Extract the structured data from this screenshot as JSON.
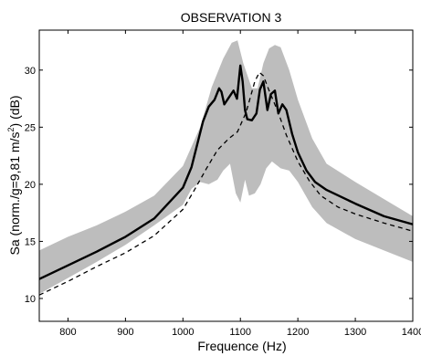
{
  "chart_data": {
    "type": "line",
    "title": "OBSERVATION 3",
    "xlabel": "Frequence (Hz)",
    "ylabel_prefix": "Sa (norm./g=9,81 m/s",
    "ylabel_sup": "2",
    "ylabel_suffix": ") (dB)",
    "xlim": [
      750,
      1400
    ],
    "ylim": [
      8,
      33.5
    ],
    "xticks": [
      800,
      900,
      1000,
      1100,
      1200,
      1300,
      1400
    ],
    "yticks": [
      10,
      15,
      20,
      25,
      30
    ],
    "grid": false,
    "legend": "none",
    "colors": {
      "band": "#bdbdbd",
      "solid": "#000000",
      "dashed": "#000000"
    },
    "band": {
      "upper": [
        [
          750,
          14.2
        ],
        [
          800,
          15.4
        ],
        [
          850,
          16.4
        ],
        [
          900,
          17.6
        ],
        [
          950,
          19.0
        ],
        [
          1000,
          21.6
        ],
        [
          1030,
          25.0
        ],
        [
          1050,
          28.5
        ],
        [
          1070,
          31.0
        ],
        [
          1085,
          32.4
        ],
        [
          1095,
          32.6
        ],
        [
          1105,
          30.6
        ],
        [
          1120,
          28.4
        ],
        [
          1130,
          28.4
        ],
        [
          1140,
          30.6
        ],
        [
          1150,
          31.9
        ],
        [
          1160,
          32.2
        ],
        [
          1170,
          32.0
        ],
        [
          1185,
          30.0
        ],
        [
          1200,
          27.4
        ],
        [
          1225,
          24.0
        ],
        [
          1250,
          21.8
        ],
        [
          1300,
          20.2
        ],
        [
          1350,
          18.7
        ],
        [
          1400,
          17.2
        ]
      ],
      "lower": [
        [
          1400,
          13.2
        ],
        [
          1350,
          14.2
        ],
        [
          1300,
          15.2
        ],
        [
          1250,
          16.6
        ],
        [
          1225,
          18.0
        ],
        [
          1200,
          20.2
        ],
        [
          1185,
          21.2
        ],
        [
          1170,
          21.4
        ],
        [
          1155,
          22.0
        ],
        [
          1145,
          21.4
        ],
        [
          1135,
          20.0
        ],
        [
          1125,
          19.2
        ],
        [
          1115,
          19.0
        ],
        [
          1108,
          20.4
        ],
        [
          1100,
          18.4
        ],
        [
          1092,
          19.2
        ],
        [
          1082,
          21.8
        ],
        [
          1070,
          21.2
        ],
        [
          1060,
          20.4
        ],
        [
          1045,
          20.0
        ],
        [
          1030,
          20.2
        ],
        [
          1015,
          19.6
        ],
        [
          1000,
          18.2
        ],
        [
          950,
          16.4
        ],
        [
          900,
          14.7
        ],
        [
          850,
          13.2
        ],
        [
          800,
          11.8
        ],
        [
          750,
          10.4
        ]
      ]
    },
    "series": [
      {
        "style": "solid",
        "points": [
          [
            750,
            11.7
          ],
          [
            800,
            12.9
          ],
          [
            850,
            14.1
          ],
          [
            900,
            15.4
          ],
          [
            950,
            17.0
          ],
          [
            1000,
            19.7
          ],
          [
            1015,
            21.5
          ],
          [
            1025,
            23.5
          ],
          [
            1035,
            25.5
          ],
          [
            1045,
            26.8
          ],
          [
            1055,
            27.4
          ],
          [
            1063,
            28.4
          ],
          [
            1067,
            28.1
          ],
          [
            1072,
            27.0
          ],
          [
            1080,
            27.6
          ],
          [
            1088,
            28.2
          ],
          [
            1094,
            27.5
          ],
          [
            1100,
            30.4
          ],
          [
            1104,
            29.0
          ],
          [
            1108,
            26.5
          ],
          [
            1112,
            25.7
          ],
          [
            1120,
            25.6
          ],
          [
            1128,
            26.2
          ],
          [
            1134,
            28.3
          ],
          [
            1140,
            29.0
          ],
          [
            1147,
            26.5
          ],
          [
            1153,
            27.9
          ],
          [
            1160,
            28.2
          ],
          [
            1166,
            26.2
          ],
          [
            1173,
            27.0
          ],
          [
            1180,
            26.5
          ],
          [
            1190,
            24.4
          ],
          [
            1200,
            22.8
          ],
          [
            1215,
            21.2
          ],
          [
            1230,
            20.2
          ],
          [
            1250,
            19.5
          ],
          [
            1300,
            18.3
          ],
          [
            1350,
            17.2
          ],
          [
            1400,
            16.5
          ]
        ]
      },
      {
        "style": "dashed",
        "points": [
          [
            750,
            10.3
          ],
          [
            800,
            11.5
          ],
          [
            850,
            12.8
          ],
          [
            900,
            14.0
          ],
          [
            950,
            15.5
          ],
          [
            1000,
            17.8
          ],
          [
            1020,
            19.5
          ],
          [
            1040,
            21.3
          ],
          [
            1060,
            23.0
          ],
          [
            1080,
            24.0
          ],
          [
            1095,
            24.6
          ],
          [
            1110,
            26.3
          ],
          [
            1125,
            29.0
          ],
          [
            1133,
            29.8
          ],
          [
            1140,
            29.5
          ],
          [
            1150,
            28.2
          ],
          [
            1165,
            26.4
          ],
          [
            1180,
            24.3
          ],
          [
            1200,
            22.0
          ],
          [
            1220,
            20.3
          ],
          [
            1240,
            19.0
          ],
          [
            1270,
            18.0
          ],
          [
            1300,
            17.4
          ],
          [
            1350,
            16.6
          ],
          [
            1400,
            15.9
          ]
        ]
      }
    ]
  }
}
